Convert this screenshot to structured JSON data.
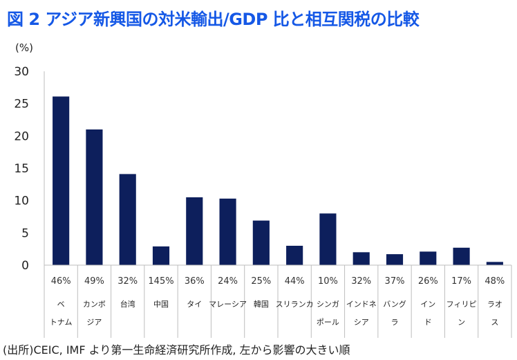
{
  "header": {
    "title": "図 2 アジア新興国の対米輸出/GDP 比と相互関税の比較",
    "unit": "(%)"
  },
  "footer": {
    "source": "(出所)CEIC, IMF より第一生命経済研究所作成, 左から影響の大きい順"
  },
  "colors": {
    "bar": "#0d1f5c",
    "title": "#1558e6"
  },
  "chart_data": {
    "type": "bar",
    "title": "図 2 アジア新興国の対米輸出/GDP 比と相互関税の比較",
    "ylabel": "(%)",
    "ylim": [
      0,
      30
    ],
    "yticks": [
      0,
      5,
      10,
      15,
      20,
      25,
      30
    ],
    "grid": false,
    "categories": [
      [
        "ベ",
        "トナム"
      ],
      [
        "カンボ",
        "ジア"
      ],
      [
        "台湾"
      ],
      [
        "中国"
      ],
      [
        "タイ"
      ],
      [
        "マレーシア"
      ],
      [
        "韓国"
      ],
      [
        "スリランカ"
      ],
      [
        "シンガ",
        "ポール"
      ],
      [
        "インドネ",
        "シア"
      ],
      [
        "バング",
        "ラ"
      ],
      [
        "イン",
        "ド"
      ],
      [
        "フィリピ",
        "ン"
      ],
      [
        "ラオ",
        "ス"
      ]
    ],
    "tariff_labels": [
      "46%",
      "49%",
      "32%",
      "145%",
      "36%",
      "24%",
      "25%",
      "44%",
      "10%",
      "32%",
      "37%",
      "26%",
      "17%",
      "48%"
    ],
    "series": [
      {
        "values": [
          26.1,
          21.0,
          14.1,
          2.9,
          10.5,
          10.3,
          6.9,
          3.0,
          8.0,
          2.0,
          1.7,
          2.1,
          2.7,
          0.5
        ]
      }
    ]
  }
}
